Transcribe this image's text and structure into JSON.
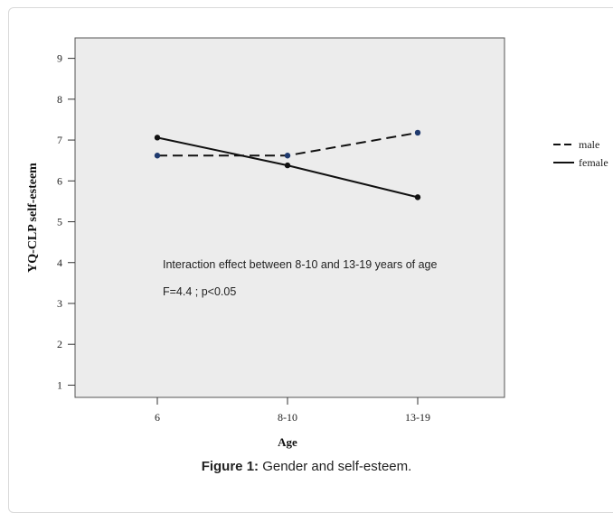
{
  "figure": {
    "caption_label": "Figure 1:",
    "caption_text": " Gender and self-esteem."
  },
  "chart_data": {
    "type": "line",
    "xlabel": "Age",
    "ylabel": "YQ-CLP self-esteem",
    "categories": [
      "6",
      "8-10",
      "13-19"
    ],
    "ylim": [
      0.7,
      9.5
    ],
    "yticks": [
      1,
      2,
      3,
      4,
      5,
      6,
      7,
      8,
      9
    ],
    "grid": false,
    "legend_position": "right",
    "series": [
      {
        "name": "male",
        "values": [
          6.62,
          6.62,
          7.18
        ],
        "line_style": "dashed",
        "marker_color": "#1f3a6e"
      },
      {
        "name": "female",
        "values": [
          7.06,
          6.38,
          5.6
        ],
        "line_style": "solid",
        "marker_color": "#111111"
      }
    ],
    "annotations": [
      "Interaction effect between 8-10 and 13-19 years of age",
      "F=4.4 ; p<0.05"
    ],
    "plot_background": "#ececec"
  }
}
